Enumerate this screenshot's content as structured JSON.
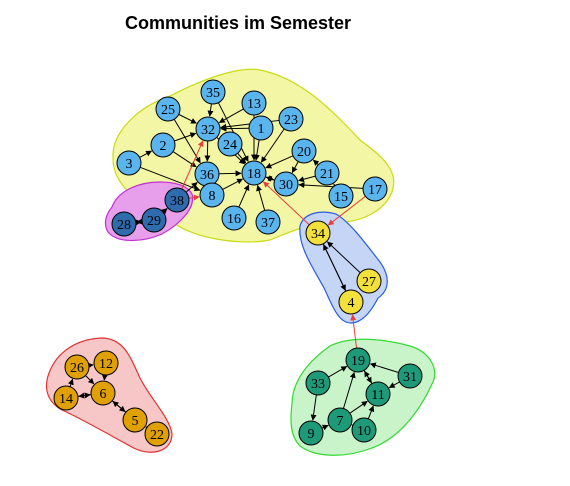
{
  "title": "Communities im Semester",
  "colors": {
    "community_blue": "#5AB4EE",
    "community_navy": "#2E6CAE",
    "community_yellow": "#F3E03A",
    "community_teal": "#1F9A79",
    "community_orange": "#E0A100",
    "hull_yellow_fill": "#F3F7A5",
    "hull_yellow_stroke": "#C8DC14",
    "hull_purple_fill": "#E79EEB",
    "hull_purple_stroke": "#C232D2",
    "hull_blue_fill": "#C5D5F6",
    "hull_blue_stroke": "#2A5CE0",
    "hull_green_fill": "#C9F4C9",
    "hull_green_stroke": "#34D834",
    "hull_red_fill": "#F7C6C6",
    "hull_red_stroke": "#E03232",
    "edge": "#000000",
    "inter_community_edge": "#E83E3E"
  },
  "communities": [
    {
      "id": "blue",
      "hull": "yellow",
      "color": "community_blue",
      "nodes": [
        "35",
        "25",
        "13",
        "23",
        "32",
        "1",
        "2",
        "24",
        "20",
        "3",
        "36",
        "18",
        "21",
        "30",
        "15",
        "17",
        "8",
        "16",
        "37"
      ]
    },
    {
      "id": "navy",
      "hull": "purple",
      "color": "community_navy",
      "nodes": [
        "38",
        "29",
        "28"
      ]
    },
    {
      "id": "yellow",
      "hull": "blue",
      "color": "community_yellow",
      "nodes": [
        "34",
        "27",
        "4"
      ]
    },
    {
      "id": "teal",
      "hull": "green",
      "color": "community_teal",
      "nodes": [
        "19",
        "33",
        "31",
        "11",
        "7",
        "9",
        "10"
      ]
    },
    {
      "id": "orange",
      "hull": "red",
      "color": "community_orange",
      "nodes": [
        "26",
        "12",
        "14",
        "6",
        "5",
        "22"
      ]
    }
  ],
  "nodes": [
    {
      "label": "35",
      "community": "blue"
    },
    {
      "label": "25",
      "community": "blue"
    },
    {
      "label": "13",
      "community": "blue"
    },
    {
      "label": "23",
      "community": "blue"
    },
    {
      "label": "32",
      "community": "blue"
    },
    {
      "label": "1",
      "community": "blue"
    },
    {
      "label": "2",
      "community": "blue"
    },
    {
      "label": "24",
      "community": "blue"
    },
    {
      "label": "20",
      "community": "blue"
    },
    {
      "label": "3",
      "community": "blue"
    },
    {
      "label": "36",
      "community": "blue"
    },
    {
      "label": "18",
      "community": "blue"
    },
    {
      "label": "21",
      "community": "blue"
    },
    {
      "label": "30",
      "community": "blue"
    },
    {
      "label": "15",
      "community": "blue"
    },
    {
      "label": "17",
      "community": "blue"
    },
    {
      "label": "8",
      "community": "blue"
    },
    {
      "label": "16",
      "community": "blue"
    },
    {
      "label": "37",
      "community": "blue"
    },
    {
      "label": "38",
      "community": "navy"
    },
    {
      "label": "29",
      "community": "navy"
    },
    {
      "label": "28",
      "community": "navy"
    },
    {
      "label": "34",
      "community": "yellow"
    },
    {
      "label": "27",
      "community": "yellow"
    },
    {
      "label": "4",
      "community": "yellow"
    },
    {
      "label": "19",
      "community": "teal"
    },
    {
      "label": "33",
      "community": "teal"
    },
    {
      "label": "31",
      "community": "teal"
    },
    {
      "label": "11",
      "community": "teal"
    },
    {
      "label": "7",
      "community": "teal"
    },
    {
      "label": "9",
      "community": "teal"
    },
    {
      "label": "10",
      "community": "teal"
    },
    {
      "label": "26",
      "community": "orange"
    },
    {
      "label": "12",
      "community": "orange"
    },
    {
      "label": "14",
      "community": "orange"
    },
    {
      "label": "6",
      "community": "orange"
    },
    {
      "label": "5",
      "community": "orange"
    },
    {
      "label": "22",
      "community": "orange"
    }
  ],
  "edges": [
    {
      "from": "35",
      "to": "32"
    },
    {
      "from": "35",
      "to": "18"
    },
    {
      "from": "25",
      "to": "32"
    },
    {
      "from": "25",
      "to": "36"
    },
    {
      "from": "13",
      "to": "32"
    },
    {
      "from": "13",
      "to": "18"
    },
    {
      "from": "23",
      "to": "32"
    },
    {
      "from": "23",
      "to": "18"
    },
    {
      "from": "1",
      "to": "32"
    },
    {
      "from": "1",
      "to": "18"
    },
    {
      "from": "2",
      "to": "32"
    },
    {
      "from": "2",
      "to": "36"
    },
    {
      "from": "3",
      "to": "2"
    },
    {
      "from": "3",
      "to": "8"
    },
    {
      "from": "24",
      "to": "18"
    },
    {
      "from": "32",
      "to": "18"
    },
    {
      "from": "32",
      "to": "36"
    },
    {
      "from": "36",
      "to": "18"
    },
    {
      "from": "8",
      "to": "18"
    },
    {
      "from": "8",
      "to": "36"
    },
    {
      "from": "16",
      "to": "18"
    },
    {
      "from": "37",
      "to": "18"
    },
    {
      "from": "20",
      "to": "18"
    },
    {
      "from": "20",
      "to": "30"
    },
    {
      "from": "21",
      "to": "20"
    },
    {
      "from": "21",
      "to": "30"
    },
    {
      "from": "15",
      "to": "21"
    },
    {
      "from": "17",
      "to": "30"
    },
    {
      "from": "30",
      "to": "18"
    },
    {
      "from": "18",
      "to": "30"
    },
    {
      "from": "38",
      "to": "36"
    },
    {
      "from": "38",
      "to": "32",
      "inter": true
    },
    {
      "from": "38",
      "to": "8",
      "inter": true
    },
    {
      "from": "29",
      "to": "38"
    },
    {
      "from": "28",
      "to": "29"
    },
    {
      "from": "29",
      "to": "28"
    },
    {
      "from": "34",
      "to": "18",
      "inter": true
    },
    {
      "from": "17",
      "to": "34",
      "inter": true
    },
    {
      "from": "34",
      "to": "4"
    },
    {
      "from": "4",
      "to": "34"
    },
    {
      "from": "27",
      "to": "34"
    },
    {
      "from": "19",
      "to": "4",
      "inter": true
    },
    {
      "from": "33",
      "to": "19"
    },
    {
      "from": "33",
      "to": "9"
    },
    {
      "from": "31",
      "to": "19"
    },
    {
      "from": "31",
      "to": "11"
    },
    {
      "from": "11",
      "to": "19"
    },
    {
      "from": "19",
      "to": "11"
    },
    {
      "from": "7",
      "to": "19"
    },
    {
      "from": "7",
      "to": "11"
    },
    {
      "from": "9",
      "to": "7"
    },
    {
      "from": "10",
      "to": "7"
    },
    {
      "from": "10",
      "to": "11"
    },
    {
      "from": "26",
      "to": "12"
    },
    {
      "from": "26",
      "to": "6"
    },
    {
      "from": "12",
      "to": "6"
    },
    {
      "from": "14",
      "to": "26"
    },
    {
      "from": "14",
      "to": "6"
    },
    {
      "from": "6",
      "to": "14"
    },
    {
      "from": "5",
      "to": "6"
    },
    {
      "from": "6",
      "to": "5"
    },
    {
      "from": "22",
      "to": "5"
    }
  ]
}
